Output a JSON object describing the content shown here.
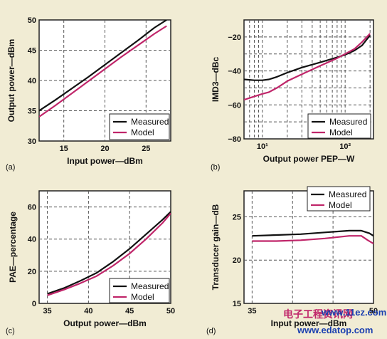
{
  "watermark": {
    "logo_text": "电子工程资讯网",
    "url_text": "www.edatop.com",
    "overlay_text": "www.11ez.com"
  },
  "colors": {
    "measured": "#111111",
    "model": "#c0266a",
    "background": "#f1ecd4"
  },
  "chart_data": [
    {
      "panel": "(a)",
      "type": "line",
      "title": "",
      "xlabel": "Input power—dBm",
      "ylabel": "Output power—dBm",
      "xlim": [
        12,
        28
      ],
      "ylim": [
        30,
        50
      ],
      "xticks": [
        15,
        20,
        25
      ],
      "yticks": [
        30,
        35,
        40,
        45,
        50
      ],
      "xtick_labels": [
        "15",
        "20",
        "25"
      ],
      "ytick_labels": [
        "30",
        "35",
        "40",
        "45",
        "50"
      ],
      "xscale": "linear",
      "grid": true,
      "legend": {
        "placement": "bottom-right",
        "entries": [
          "Measured",
          "Model"
        ]
      },
      "series": [
        {
          "name": "Measured",
          "x": [
            12,
            14,
            16,
            18,
            20,
            22,
            24,
            26,
            27.5
          ],
          "y": [
            35,
            36.8,
            38.7,
            40.6,
            42.6,
            44.6,
            46.6,
            48.7,
            50
          ]
        },
        {
          "name": "Model",
          "x": [
            12,
            14,
            16,
            18,
            20,
            22,
            24,
            26,
            27.5
          ],
          "y": [
            34,
            35.9,
            37.9,
            39.9,
            41.9,
            43.9,
            45.8,
            47.7,
            49
          ]
        }
      ]
    },
    {
      "panel": "(b)",
      "type": "line",
      "title": "",
      "xlabel": "Output power PEP—W",
      "ylabel": "IMD3—dBc",
      "xlim": [
        6,
        220
      ],
      "ylim": [
        -80,
        -10
      ],
      "xscale": "log",
      "xticks": [
        10,
        100
      ],
      "xtick_labels": [
        "10¹",
        "10²"
      ],
      "yticks": [
        -80,
        -60,
        -40,
        -20
      ],
      "ytick_labels": [
        "−80",
        "−60",
        "−40",
        "−20"
      ],
      "grid": true,
      "legend": {
        "placement": "bottom-right",
        "entries": [
          "Measured",
          "Model"
        ]
      },
      "series": [
        {
          "name": "Measured",
          "x": [
            6,
            8,
            10,
            12,
            15,
            20,
            30,
            50,
            80,
            100,
            130,
            160,
            200
          ],
          "y": [
            -45,
            -45.5,
            -45.5,
            -45,
            -43.5,
            -41,
            -38,
            -35,
            -32,
            -30.5,
            -28,
            -25,
            -19
          ]
        },
        {
          "name": "Model",
          "x": [
            6,
            8,
            10,
            12,
            15,
            20,
            30,
            50,
            80,
            100,
            130,
            160,
            200
          ],
          "y": [
            -57,
            -55,
            -53.5,
            -52.5,
            -50,
            -46,
            -42,
            -37,
            -32.5,
            -30,
            -27,
            -23,
            -18
          ]
        }
      ]
    },
    {
      "panel": "(c)",
      "type": "line",
      "title": "",
      "xlabel": "Output power—dBm",
      "ylabel": "PAE—percentage",
      "xlim": [
        34,
        50
      ],
      "ylim": [
        0,
        70
      ],
      "xscale": "linear",
      "xticks": [
        35,
        40,
        45,
        50
      ],
      "xtick_labels": [
        "35",
        "40",
        "45",
        "50"
      ],
      "yticks": [
        0,
        20,
        40,
        60
      ],
      "ytick_labels": [
        "0",
        "20",
        "40",
        "60"
      ],
      "grid": true,
      "legend": {
        "placement": "bottom-right",
        "entries": [
          "Measured",
          "Model"
        ]
      },
      "series": [
        {
          "name": "Measured",
          "x": [
            35,
            37,
            39,
            41,
            43,
            45,
            47,
            49,
            50
          ],
          "y": [
            6,
            9.5,
            14,
            19,
            26,
            34,
            43,
            52,
            57
          ]
        },
        {
          "name": "Model",
          "x": [
            35,
            37,
            39,
            41,
            43,
            45,
            47,
            49,
            50
          ],
          "y": [
            5,
            8.5,
            12.5,
            17,
            23.5,
            31,
            40,
            50,
            56
          ]
        }
      ]
    },
    {
      "panel": "(d)",
      "type": "line",
      "title": "",
      "xlabel": "Input power—dBm",
      "ylabel": "Transducer gain—dB",
      "xlim": [
        34,
        50
      ],
      "ylim": [
        15,
        28
      ],
      "xscale": "linear",
      "xticks": [
        35,
        50
      ],
      "xtick_labels": [
        "35",
        "50"
      ],
      "yticks": [
        15,
        20,
        25
      ],
      "ytick_labels": [
        "15",
        "20",
        "25"
      ],
      "grid": true,
      "legend": {
        "placement": "top-right",
        "entries": [
          "Measured",
          "Model"
        ]
      },
      "series": [
        {
          "name": "Measured",
          "x": [
            35,
            38,
            41,
            44,
            47,
            48.5,
            49.5,
            50
          ],
          "y": [
            22.8,
            22.9,
            23.0,
            23.2,
            23.4,
            23.4,
            23.1,
            22.8
          ]
        },
        {
          "name": "Model",
          "x": [
            35,
            38,
            41,
            44,
            47,
            48.5,
            49.3,
            50
          ],
          "y": [
            22.2,
            22.2,
            22.3,
            22.5,
            22.8,
            22.8,
            22.3,
            21.9
          ]
        }
      ]
    }
  ]
}
